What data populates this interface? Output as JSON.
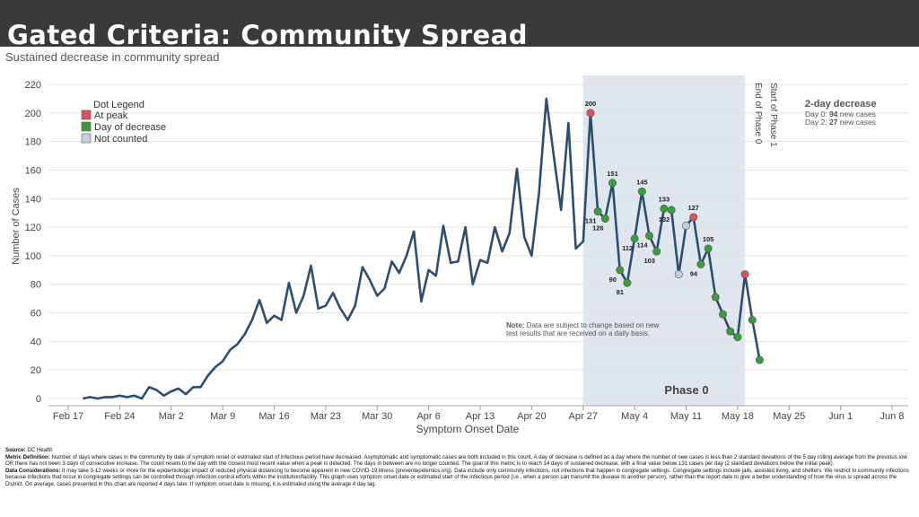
{
  "slide_title": "Gated Criteria: Community Spread",
  "chart_data": {
    "type": "line",
    "title": "Sustained decrease in community spread",
    "xlabel": "Symptom Onset Date",
    "ylabel": "Number of Cases",
    "ylim": [
      0,
      220
    ],
    "yticks": [
      0,
      20,
      40,
      60,
      80,
      100,
      120,
      140,
      160,
      180,
      200,
      220
    ],
    "x_start_date": "2020-02-19",
    "xticks": [
      {
        "date": "2020-02-17",
        "label": "Feb 17"
      },
      {
        "date": "2020-02-24",
        "label": "Feb 24"
      },
      {
        "date": "2020-03-02",
        "label": "Mar 2"
      },
      {
        "date": "2020-03-09",
        "label": "Mar 9"
      },
      {
        "date": "2020-03-16",
        "label": "Mar 16"
      },
      {
        "date": "2020-03-23",
        "label": "Mar 23"
      },
      {
        "date": "2020-03-30",
        "label": "Mar 30"
      },
      {
        "date": "2020-04-06",
        "label": "Apr 6"
      },
      {
        "date": "2020-04-13",
        "label": "Apr 13"
      },
      {
        "date": "2020-04-20",
        "label": "Apr 20"
      },
      {
        "date": "2020-04-27",
        "label": "Apr 27"
      },
      {
        "date": "2020-05-04",
        "label": "May 4"
      },
      {
        "date": "2020-05-11",
        "label": "May 11"
      },
      {
        "date": "2020-05-18",
        "label": "May 18"
      },
      {
        "date": "2020-05-25",
        "label": "May 25"
      },
      {
        "date": "2020-06-01",
        "label": "Jun 1"
      },
      {
        "date": "2020-06-08",
        "label": "Jun 8"
      }
    ],
    "series": [
      {
        "color": "#2d4e6e",
        "values": [
          0,
          1,
          0,
          1,
          1,
          2,
          1,
          2,
          0,
          8,
          6,
          2,
          5,
          7,
          3,
          8,
          8,
          16,
          22,
          26,
          34,
          38,
          45,
          55,
          69,
          53,
          58,
          55,
          81,
          60,
          72,
          93,
          63,
          65,
          74,
          63,
          55,
          65,
          92,
          83,
          72,
          77,
          96,
          88,
          100,
          117,
          68,
          90,
          86,
          121,
          95,
          96,
          120,
          80,
          97,
          95,
          120,
          103,
          116,
          161,
          113,
          100,
          144,
          210,
          170,
          132,
          193,
          105,
          110,
          200,
          131,
          126,
          151,
          90,
          81,
          112,
          145,
          114,
          103,
          133,
          132,
          87,
          121,
          127,
          94,
          105,
          71,
          59,
          47,
          43,
          87,
          55,
          27
        ]
      }
    ],
    "dot_legend_title": "Dot Legend",
    "dot_legend": [
      {
        "label": "At peak",
        "color": "#d9535f"
      },
      {
        "label": "Day of decrease",
        "color": "#3d9a3d"
      },
      {
        "label": "Not counted",
        "color": "#c5cfdc"
      }
    ],
    "dots": [
      {
        "date": "2020-04-28",
        "value": 200,
        "kind": "peak",
        "label": "200"
      },
      {
        "date": "2020-04-29",
        "value": 131,
        "kind": "decrease",
        "label": "131"
      },
      {
        "date": "2020-04-30",
        "value": 126,
        "kind": "decrease",
        "label": "126"
      },
      {
        "date": "2020-05-01",
        "value": 151,
        "kind": "decrease",
        "label": "151"
      },
      {
        "date": "2020-05-02",
        "value": 90,
        "kind": "decrease",
        "label": "90"
      },
      {
        "date": "2020-05-03",
        "value": 81,
        "kind": "decrease",
        "label": "81"
      },
      {
        "date": "2020-05-04",
        "value": 112,
        "kind": "decrease",
        "label": "112"
      },
      {
        "date": "2020-05-05",
        "value": 145,
        "kind": "decrease",
        "label": "145"
      },
      {
        "date": "2020-05-06",
        "value": 114,
        "kind": "decrease",
        "label": "114"
      },
      {
        "date": "2020-05-07",
        "value": 103,
        "kind": "decrease",
        "label": "103"
      },
      {
        "date": "2020-05-08",
        "value": 133,
        "kind": "decrease",
        "label": "133"
      },
      {
        "date": "2020-05-09",
        "value": 132,
        "kind": "decrease",
        "label": "132"
      },
      {
        "date": "2020-05-10",
        "value": 87,
        "kind": "notcounted",
        "label": ""
      },
      {
        "date": "2020-05-11",
        "value": 121,
        "kind": "notcounted",
        "label": ""
      },
      {
        "date": "2020-05-12",
        "value": 127,
        "kind": "peak",
        "label": "127"
      },
      {
        "date": "2020-05-13",
        "value": 94,
        "kind": "decrease",
        "label": "94"
      },
      {
        "date": "2020-05-14",
        "value": 105,
        "kind": "decrease",
        "label": "105"
      },
      {
        "date": "2020-05-15",
        "value": 71,
        "kind": "decrease",
        "label": ""
      },
      {
        "date": "2020-05-16",
        "value": 59,
        "kind": "decrease",
        "label": ""
      },
      {
        "date": "2020-05-17",
        "value": 47,
        "kind": "decrease",
        "label": ""
      },
      {
        "date": "2020-05-18",
        "value": 43,
        "kind": "decrease",
        "label": ""
      },
      {
        "date": "2020-05-19",
        "value": 87,
        "kind": "peak",
        "label": ""
      },
      {
        "date": "2020-05-20",
        "value": 55,
        "kind": "decrease",
        "label": ""
      },
      {
        "date": "2020-05-21",
        "value": 27,
        "kind": "decrease",
        "label": ""
      }
    ],
    "phase0_band": {
      "start": "2020-04-27",
      "end": "2020-05-19",
      "label": "Phase 0"
    },
    "end_phase0_label": "End of Phase 0",
    "start_phase1_label": "Start of Phase 1",
    "decrease_box": {
      "title": "2-day decrease",
      "line1_prefix": "Day 0: ",
      "line1_value": "94",
      "line1_suffix": " new cases",
      "line2_prefix": "Day 2: ",
      "line2_value": "27",
      "line2_suffix": " new cases"
    },
    "note_label": "Note:",
    "note_line1": " Data are subject to change based on new",
    "note_line2": "test results that are received on a daily basis."
  },
  "footnotes": {
    "source_label": "Source:",
    "source_text": " DC Health",
    "metric_label": "Metric Definition:",
    "metric_text": " Number of days where cases in the community by date of symptom onset or estimated start of infectious period have decreased. Asymptomatic and symptomatic cases are both included in this count. A day of decrease is defined as a day where the number of new cases is less than 2 standard deviations of the 5 day rolling average from the previous low OR there has not been 3 days of consecutive increase. The count resets to the day with the closest most recent value when a peak is detected. The days in between are no longer counted. The goal of this metric is to reach 14 days of sustained decrease, with a final value below 131 cases per day (2 standard deviations below the initial peak).",
    "data_label": "Data Considerations:",
    "data_text": " It may take 3-12 weeks or more for the epidemiologic impact of reduced physical distancing to become apparent in new COVID-19 illness (preventepidemics.org). Data include only community infections, not infections that happen in congregate settings. Congregate settings include jails, assisted living, and shelters. We restrict to community infections because infections that occur in congregate settings can be controlled through infection control efforts within the institution/facility. This graph uses symptom onset date or estimated start of the infectious period (i.e., when a person can transmit the disease to another person), rather than the report date to give a better understanding of how the virus is spread across the District. On average, cases presented in this chart are reported 4 days later. If symptom onset date is missing, it is estimated using the average 4 day lag."
  }
}
